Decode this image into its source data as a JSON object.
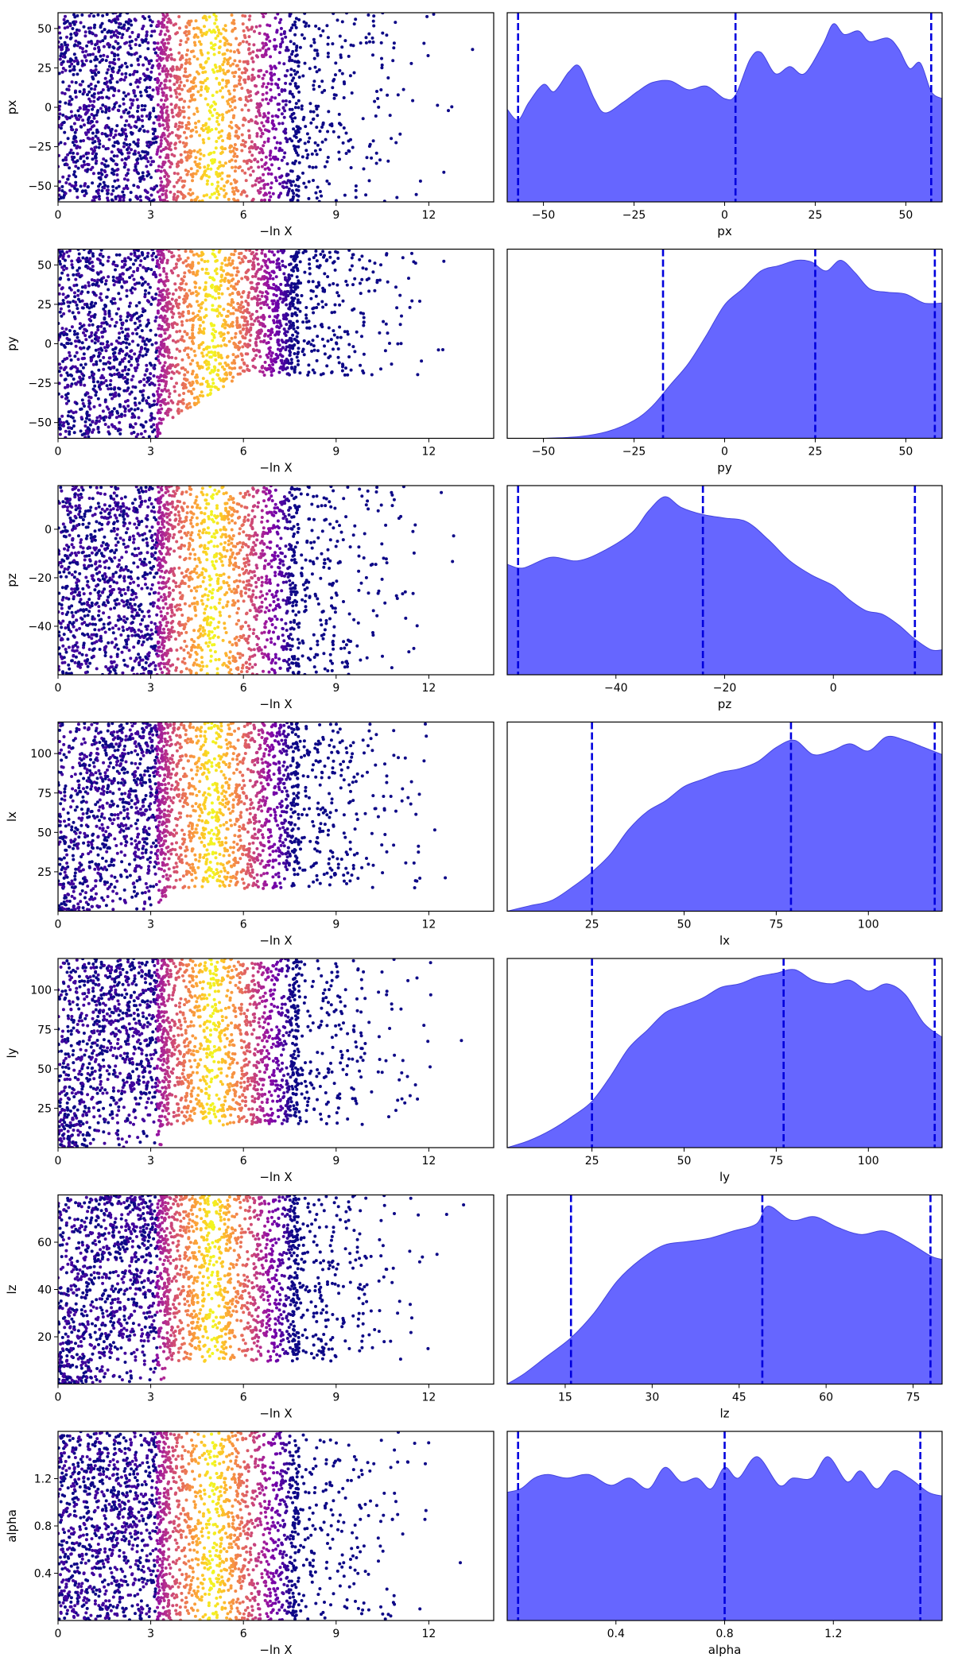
{
  "colors": {
    "scatter_colormap": [
      "#0d0887",
      "#41049d",
      "#6a00a8",
      "#8f0da4",
      "#b12a90",
      "#cc4778",
      "#e16462",
      "#f2844b",
      "#fca636",
      "#fcce25",
      "#f0f921"
    ],
    "kde_fill": "#6666ff",
    "kde_edge": "#4444dd",
    "quantile_line": "#0000dd"
  },
  "chart_data": [
    {
      "type": "scatter",
      "ylabel": "px",
      "xlabel": "−ln X",
      "xlim": [
        0,
        14.1
      ],
      "ylim": [
        -60,
        60
      ],
      "xticks": [
        0,
        3,
        6,
        9,
        12
      ],
      "yticks": [
        50,
        25,
        0,
        -25,
        -50
      ],
      "points": 2500,
      "color_peak_x": 5.0
    },
    {
      "type": "area",
      "xlabel": "px",
      "xlim": [
        -60,
        60
      ],
      "xticks": [
        -50,
        -25,
        0,
        25,
        50
      ],
      "quantiles": [
        -57,
        3,
        57
      ],
      "density": [
        [
          -60,
          0.52
        ],
        [
          -57,
          0.46
        ],
        [
          -54,
          0.56
        ],
        [
          -50,
          0.66
        ],
        [
          -47,
          0.62
        ],
        [
          -43,
          0.73
        ],
        [
          -40,
          0.76
        ],
        [
          -36,
          0.58
        ],
        [
          -33,
          0.5
        ],
        [
          -28,
          0.56
        ],
        [
          -24,
          0.62
        ],
        [
          -20,
          0.67
        ],
        [
          -15,
          0.68
        ],
        [
          -10,
          0.63
        ],
        [
          -5,
          0.65
        ],
        [
          0,
          0.58
        ],
        [
          3,
          0.6
        ],
        [
          7,
          0.8
        ],
        [
          10,
          0.84
        ],
        [
          14,
          0.72
        ],
        [
          18,
          0.76
        ],
        [
          22,
          0.72
        ],
        [
          27,
          0.88
        ],
        [
          30,
          1.0
        ],
        [
          33,
          0.94
        ],
        [
          37,
          0.96
        ],
        [
          40,
          0.9
        ],
        [
          45,
          0.92
        ],
        [
          48,
          0.86
        ],
        [
          51,
          0.75
        ],
        [
          54,
          0.78
        ],
        [
          57,
          0.62
        ],
        [
          60,
          0.58
        ]
      ]
    },
    {
      "type": "scatter",
      "ylabel": "py",
      "xlabel": "−ln X",
      "xlim": [
        0,
        14.1
      ],
      "ylim": [
        -60,
        60
      ],
      "xticks": [
        0,
        3,
        6,
        9,
        12
      ],
      "yticks": [
        50,
        25,
        0,
        -25,
        -50
      ],
      "points": 2500,
      "color_peak_x": 5.0
    },
    {
      "type": "area",
      "xlabel": "py",
      "xlim": [
        -60,
        60
      ],
      "xticks": [
        -50,
        -25,
        0,
        25,
        50
      ],
      "quantiles": [
        -17,
        25,
        58
      ],
      "density": [
        [
          -60,
          0.0
        ],
        [
          -50,
          0.0
        ],
        [
          -40,
          0.01
        ],
        [
          -32,
          0.04
        ],
        [
          -25,
          0.1
        ],
        [
          -20,
          0.18
        ],
        [
          -15,
          0.3
        ],
        [
          -10,
          0.42
        ],
        [
          -5,
          0.58
        ],
        [
          0,
          0.75
        ],
        [
          5,
          0.84
        ],
        [
          10,
          0.94
        ],
        [
          15,
          0.97
        ],
        [
          20,
          1.0
        ],
        [
          24,
          0.99
        ],
        [
          28,
          0.94
        ],
        [
          32,
          1.0
        ],
        [
          36,
          0.93
        ],
        [
          40,
          0.84
        ],
        [
          45,
          0.82
        ],
        [
          50,
          0.81
        ],
        [
          55,
          0.76
        ],
        [
          60,
          0.76
        ]
      ]
    },
    {
      "type": "scatter",
      "ylabel": "pz",
      "xlabel": "−ln X",
      "xlim": [
        0,
        14.1
      ],
      "ylim": [
        -60,
        18
      ],
      "xticks": [
        0,
        3,
        6,
        9,
        12
      ],
      "yticks": [
        0,
        -20,
        -40
      ],
      "points": 2500,
      "color_peak_x": 5.0
    },
    {
      "type": "area",
      "xlabel": "pz",
      "xlim": [
        -60,
        20
      ],
      "xticks": [
        -40,
        -20,
        0
      ],
      "quantiles": [
        -58,
        -24,
        15
      ],
      "density": [
        [
          -60,
          0.62
        ],
        [
          -57,
          0.6
        ],
        [
          -52,
          0.66
        ],
        [
          -47,
          0.64
        ],
        [
          -42,
          0.7
        ],
        [
          -37,
          0.8
        ],
        [
          -34,
          0.92
        ],
        [
          -31,
          1.0
        ],
        [
          -28,
          0.94
        ],
        [
          -24,
          0.9
        ],
        [
          -20,
          0.88
        ],
        [
          -16,
          0.86
        ],
        [
          -12,
          0.76
        ],
        [
          -8,
          0.64
        ],
        [
          -4,
          0.56
        ],
        [
          0,
          0.5
        ],
        [
          3,
          0.42
        ],
        [
          6,
          0.36
        ],
        [
          9,
          0.34
        ],
        [
          12,
          0.28
        ],
        [
          15,
          0.2
        ],
        [
          18,
          0.14
        ],
        [
          20,
          0.14
        ]
      ]
    },
    {
      "type": "scatter",
      "ylabel": "lx",
      "xlabel": "−ln X",
      "xlim": [
        0,
        14.1
      ],
      "ylim": [
        0,
        120
      ],
      "xticks": [
        0,
        3,
        6,
        9,
        12
      ],
      "yticks": [
        100,
        75,
        50,
        25
      ],
      "points": 2500,
      "color_peak_x": 5.0
    },
    {
      "type": "area",
      "xlabel": "lx",
      "xlim": [
        2,
        120
      ],
      "xticks": [
        25,
        50,
        75,
        100
      ],
      "quantiles": [
        25,
        79,
        118
      ],
      "density": [
        [
          2,
          0.0
        ],
        [
          8,
          0.03
        ],
        [
          14,
          0.06
        ],
        [
          20,
          0.14
        ],
        [
          25,
          0.22
        ],
        [
          30,
          0.32
        ],
        [
          35,
          0.46
        ],
        [
          40,
          0.56
        ],
        [
          45,
          0.62
        ],
        [
          50,
          0.7
        ],
        [
          55,
          0.74
        ],
        [
          60,
          0.78
        ],
        [
          65,
          0.8
        ],
        [
          70,
          0.84
        ],
        [
          75,
          0.92
        ],
        [
          80,
          0.96
        ],
        [
          85,
          0.88
        ],
        [
          90,
          0.9
        ],
        [
          95,
          0.94
        ],
        [
          100,
          0.9
        ],
        [
          105,
          0.98
        ],
        [
          110,
          0.96
        ],
        [
          115,
          0.92
        ],
        [
          120,
          0.88
        ]
      ]
    },
    {
      "type": "scatter",
      "ylabel": "ly",
      "xlabel": "−ln X",
      "xlim": [
        0,
        14.1
      ],
      "ylim": [
        0,
        120
      ],
      "xticks": [
        0,
        3,
        6,
        9,
        12
      ],
      "yticks": [
        100,
        75,
        50,
        25
      ],
      "points": 2500,
      "color_peak_x": 5.0
    },
    {
      "type": "area",
      "xlabel": "ly",
      "xlim": [
        2,
        120
      ],
      "xticks": [
        25,
        50,
        75,
        100
      ],
      "quantiles": [
        25,
        77,
        118
      ],
      "density": [
        [
          2,
          0.0
        ],
        [
          8,
          0.04
        ],
        [
          14,
          0.1
        ],
        [
          20,
          0.18
        ],
        [
          25,
          0.26
        ],
        [
          30,
          0.4
        ],
        [
          35,
          0.56
        ],
        [
          40,
          0.66
        ],
        [
          45,
          0.76
        ],
        [
          50,
          0.8
        ],
        [
          55,
          0.84
        ],
        [
          60,
          0.9
        ],
        [
          65,
          0.92
        ],
        [
          70,
          0.96
        ],
        [
          75,
          0.98
        ],
        [
          80,
          1.0
        ],
        [
          85,
          0.94
        ],
        [
          90,
          0.92
        ],
        [
          95,
          0.94
        ],
        [
          100,
          0.88
        ],
        [
          105,
          0.92
        ],
        [
          110,
          0.86
        ],
        [
          115,
          0.7
        ],
        [
          120,
          0.62
        ]
      ]
    },
    {
      "type": "scatter",
      "ylabel": "lz",
      "xlabel": "−ln X",
      "xlim": [
        0,
        14.1
      ],
      "ylim": [
        0,
        80
      ],
      "xticks": [
        0,
        3,
        6,
        9,
        12
      ],
      "yticks": [
        60,
        40,
        20
      ],
      "points": 2500,
      "color_peak_x": 5.0
    },
    {
      "type": "area",
      "xlabel": "lz",
      "xlim": [
        5,
        80
      ],
      "xticks": [
        15,
        30,
        45,
        60,
        75
      ],
      "quantiles": [
        16,
        49,
        78
      ],
      "density": [
        [
          5,
          0.0
        ],
        [
          8,
          0.06
        ],
        [
          12,
          0.16
        ],
        [
          16,
          0.26
        ],
        [
          20,
          0.4
        ],
        [
          24,
          0.58
        ],
        [
          28,
          0.7
        ],
        [
          32,
          0.78
        ],
        [
          36,
          0.8
        ],
        [
          40,
          0.82
        ],
        [
          44,
          0.86
        ],
        [
          48,
          0.9
        ],
        [
          50,
          1.0
        ],
        [
          54,
          0.92
        ],
        [
          58,
          0.94
        ],
        [
          62,
          0.88
        ],
        [
          66,
          0.84
        ],
        [
          70,
          0.86
        ],
        [
          74,
          0.8
        ],
        [
          78,
          0.72
        ],
        [
          80,
          0.7
        ]
      ]
    },
    {
      "type": "scatter",
      "ylabel": "alpha",
      "xlabel": "−ln X",
      "xlim": [
        0,
        14.1
      ],
      "ylim": [
        0,
        1.6
      ],
      "xticks": [
        0,
        3,
        6,
        9,
        12
      ],
      "yticks": [
        1.2,
        0.8,
        0.4
      ],
      "points": 2500,
      "color_peak_x": 5.0
    },
    {
      "type": "area",
      "xlabel": "alpha",
      "xlim": [
        0,
        1.6
      ],
      "xticks": [
        0.4,
        0.8,
        1.2
      ],
      "quantiles": [
        0.04,
        0.8,
        1.52
      ],
      "density": [
        [
          0.0,
          0.72
        ],
        [
          0.05,
          0.74
        ],
        [
          0.1,
          0.8
        ],
        [
          0.15,
          0.82
        ],
        [
          0.22,
          0.8
        ],
        [
          0.3,
          0.82
        ],
        [
          0.38,
          0.76
        ],
        [
          0.45,
          0.8
        ],
        [
          0.52,
          0.74
        ],
        [
          0.58,
          0.86
        ],
        [
          0.64,
          0.78
        ],
        [
          0.7,
          0.8
        ],
        [
          0.75,
          0.74
        ],
        [
          0.8,
          0.86
        ],
        [
          0.85,
          0.8
        ],
        [
          0.92,
          0.92
        ],
        [
          1.0,
          0.76
        ],
        [
          1.05,
          0.8
        ],
        [
          1.12,
          0.8
        ],
        [
          1.18,
          0.92
        ],
        [
          1.25,
          0.78
        ],
        [
          1.3,
          0.84
        ],
        [
          1.36,
          0.74
        ],
        [
          1.42,
          0.84
        ],
        [
          1.48,
          0.8
        ],
        [
          1.55,
          0.72
        ],
        [
          1.6,
          0.7
        ]
      ]
    }
  ]
}
